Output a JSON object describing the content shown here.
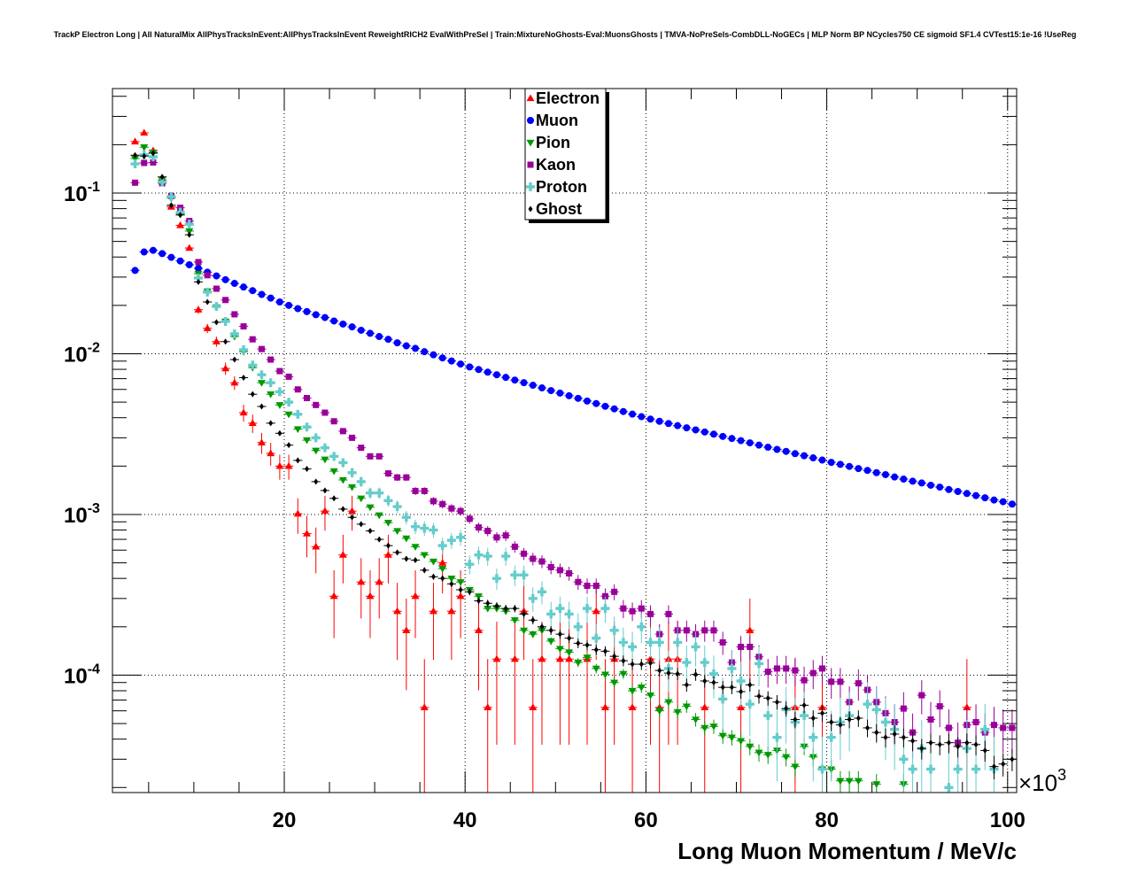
{
  "title": "TrackP Electron Long | All NaturalMix AllPhysTracksInEvent:AllPhysTracksInEvent ReweightRICH2 EvalWithPreSel | Train:MixtureNoGhosts-Eval:MuonsGhosts | TMVA-NoPreSels-CombDLL-NoGECs | MLP Norm BP NCycles750 CE sigmoid SF1.4 CVTest15:1e-16 !UseReg",
  "chart_data": {
    "type": "scatter",
    "title": "TrackP Electron Long | All NaturalMix AllPhysTracksInEvent:AllPhysTracksInEvent ReweightRICH2 EvalWithPreSel | Train:MixtureNoGhosts-Eval:MuonsGhosts | TMVA-NoPreSels-CombDLL-NoGECs | MLP Norm BP NCycles750 CE sigmoid SF1.4 CVTest15:1e-16 !UseReg",
    "xlabel": "Long Muon Momentum / MeV/c",
    "x_multiplier": {
      "base": "×10",
      "exp": "3"
    },
    "ylabel": "",
    "xlim": [
      1,
      101
    ],
    "ylim": [
      1.86e-05,
      0.447
    ],
    "yscale": "log",
    "grid": true,
    "legend_position": "top-center",
    "x_ticks": [
      {
        "value": 20,
        "label": "20"
      },
      {
        "value": 40,
        "label": "40"
      },
      {
        "value": 60,
        "label": "60"
      },
      {
        "value": 80,
        "label": "80"
      },
      {
        "value": 100,
        "label": "100"
      }
    ],
    "y_ticks": [
      {
        "value": 0.1,
        "base": "10",
        "exp": "-1"
      },
      {
        "value": 0.01,
        "base": "10",
        "exp": "-2"
      },
      {
        "value": 0.001,
        "base": "10",
        "exp": "-3"
      },
      {
        "value": 0.0001,
        "base": "10",
        "exp": "-4"
      }
    ],
    "x_start": 3.5,
    "bin_width": 1,
    "series": [
      {
        "name": "Electron",
        "color": "#ff0000",
        "marker": "triangle-up",
        "unit_weight": 6.3e-05,
        "values": [
          0.209,
          0.237,
          0.184,
          0.118,
          0.082,
          0.063,
          0.0455,
          0.0188,
          0.0144,
          0.0119,
          0.0081,
          0.0066,
          0.0043,
          0.0037,
          0.0028,
          0.0024,
          0.002,
          0.002,
          0.00101,
          0.00076,
          0.00063,
          0.00105,
          0.00031,
          0.00056,
          0.00105,
          0.00038,
          0.00031,
          0.00038,
          0.00056,
          0.00025,
          0.00019,
          0.00031,
          6.3e-05,
          0.00025,
          0.0005,
          0.00025,
          0.00031,
          null,
          0.00019,
          6.3e-05,
          0.000126,
          null,
          0.000126,
          0.00025,
          6.3e-05,
          0.000126,
          null,
          0.000126,
          0.000126,
          null,
          0.000126,
          0.00025,
          6.3e-05,
          0.000126,
          null,
          6.3e-05,
          null,
          0.000126,
          6.3e-05,
          0.000126,
          0.000126,
          null,
          null,
          6.3e-05,
          null,
          null,
          null,
          6.3e-05,
          0.00019,
          null,
          null,
          null,
          null,
          6.3e-05,
          null,
          null,
          6.3e-05,
          null,
          null,
          null,
          null,
          null,
          null,
          null,
          null,
          null,
          null,
          null,
          null,
          null,
          null,
          null,
          6.3e-05,
          null,
          null,
          null,
          null,
          null
        ]
      },
      {
        "name": "Muon",
        "color": "#0000ff",
        "marker": "circle",
        "unit_weight": 2e-07,
        "values": [
          0.033,
          0.043,
          0.044,
          0.042,
          0.0398,
          0.0378,
          0.0358,
          0.034,
          0.0322,
          0.0305,
          0.0289,
          0.0274,
          0.026,
          0.0247,
          0.0234,
          0.0222,
          0.021,
          0.02,
          0.0191,
          0.0183,
          0.0175,
          0.0168,
          0.016,
          0.0153,
          0.0147,
          0.014,
          0.0134,
          0.0128,
          0.0123,
          0.0117,
          0.0112,
          0.0108,
          0.0103,
          0.00985,
          0.00942,
          0.00902,
          0.00863,
          0.00828,
          0.00798,
          0.00768,
          0.0074,
          0.00713,
          0.00686,
          0.00661,
          0.00637,
          0.00613,
          0.0059,
          0.00569,
          0.00548,
          0.00528,
          0.00508,
          0.0049,
          0.00471,
          0.00454,
          0.00437,
          0.00421,
          0.00406,
          0.00392,
          0.0038,
          0.00368,
          0.00357,
          0.00346,
          0.00336,
          0.00326,
          0.00316,
          0.00306,
          0.00297,
          0.00288,
          0.00279,
          0.0027,
          0.00262,
          0.00254,
          0.00247,
          0.00239,
          0.00232,
          0.00225,
          0.00218,
          0.00211,
          0.00205,
          0.00199,
          0.00193,
          0.00188,
          0.00182,
          0.00177,
          0.00171,
          0.00166,
          0.00161,
          0.00157,
          0.00152,
          0.00148,
          0.00143,
          0.00139,
          0.00135,
          0.00131,
          0.00127,
          0.00123,
          0.0012,
          0.00116
        ]
      },
      {
        "name": "Pion",
        "color": "#009900",
        "marker": "triangle-down",
        "unit_weight": 5e-07,
        "values": [
          0.164,
          0.193,
          0.179,
          0.121,
          0.093,
          0.074,
          0.058,
          0.0315,
          0.0245,
          0.0195,
          0.0159,
          0.0128,
          0.0103,
          0.0082,
          0.0066,
          0.0056,
          0.0048,
          0.0042,
          0.0034,
          0.0029,
          0.0025,
          0.0022,
          0.00186,
          0.00164,
          0.00148,
          0.00126,
          0.00111,
          0.00099,
          0.00089,
          0.00079,
          0.00071,
          0.00063,
          0.00056,
          0.00051,
          0.00046,
          0.0004,
          0.00038,
          0.00034,
          0.00031,
          0.00026,
          0.00026,
          0.00025,
          0.00022,
          0.00019,
          0.00018,
          0.00019,
          0.000163,
          0.000146,
          0.000139,
          0.00012,
          0.000129,
          0.00011,
          0.000101,
          9e-05,
          0.000102,
          8e-05,
          8.4e-05,
          7.5e-05,
          6e-05,
          6.8e-05,
          5.9e-05,
          6.4e-05,
          5.3e-05,
          4.7e-05,
          4.8e-05,
          4.2e-05,
          4.1e-05,
          3.9e-05,
          3.6e-05,
          3.3e-05,
          3.2e-05,
          3.4e-05,
          3.1e-05,
          2.7e-05,
          3.6e-05,
          3.1e-05,
          2.6e-05,
          2.6e-05,
          2.2e-05,
          2.2e-05,
          2.2e-05,
          null,
          2.1e-05,
          null,
          null,
          2.1e-05,
          null,
          null,
          null,
          null,
          null,
          null,
          null,
          null,
          null,
          null,
          null,
          null
        ]
      },
      {
        "name": "Kaon",
        "color": "#990099",
        "marker": "square",
        "unit_weight": 4.3e-06,
        "values": [
          0.116,
          0.154,
          0.155,
          0.115,
          0.096,
          0.081,
          0.067,
          0.0372,
          0.0308,
          0.0254,
          0.0216,
          0.0176,
          0.0148,
          0.0123,
          0.0107,
          0.0092,
          0.0078,
          0.0072,
          0.006,
          0.0053,
          0.0048,
          0.0043,
          0.0038,
          0.0033,
          0.003,
          0.0026,
          0.0023,
          0.0023,
          0.0018,
          0.0017,
          0.0017,
          0.0014,
          0.0014,
          0.00121,
          0.00116,
          0.00109,
          0.00105,
          0.00094,
          0.00083,
          0.00079,
          0.00072,
          0.00074,
          0.00063,
          0.00057,
          0.00053,
          0.00051,
          0.00047,
          0.00045,
          0.00043,
          0.00038,
          0.00036,
          0.00036,
          0.00031,
          0.00033,
          0.00026,
          0.00025,
          0.00026,
          0.00024,
          0.00018,
          0.00024,
          0.00019,
          0.00019,
          0.00018,
          0.00019,
          0.00019,
          0.00016,
          0.00012,
          0.00015,
          0.00015,
          0.00013,
          0.000105,
          0.00011,
          0.00011,
          0.000107,
          9.3e-05,
          0.000103,
          0.00011,
          9.1e-05,
          9.1e-05,
          6.8e-05,
          8.9e-05,
          8.1e-05,
          6.8e-05,
          5.8e-05,
          5.1e-05,
          6.2e-05,
          4.4e-05,
          7.5e-05,
          5.3e-05,
          6.4e-05,
          4.7e-05,
          3.8e-05,
          4.9e-05,
          5.1e-05,
          4.4e-05,
          4.9e-05,
          4.7e-05,
          4.7e-05
        ]
      },
      {
        "name": "Proton",
        "color": "#66cccc",
        "marker": "cross",
        "unit_weight": 9e-06,
        "values": [
          0.152,
          0.173,
          0.168,
          0.117,
          0.095,
          0.076,
          0.064,
          0.0296,
          0.0242,
          0.0197,
          0.0159,
          0.0133,
          0.0106,
          0.0085,
          0.0074,
          0.0066,
          0.0058,
          0.005,
          0.0042,
          0.0035,
          0.003,
          0.0026,
          0.0023,
          0.0021,
          0.00182,
          0.0016,
          0.00136,
          0.00136,
          0.00122,
          0.00112,
          0.00096,
          0.00084,
          0.00082,
          0.0008,
          0.00064,
          0.00069,
          0.00072,
          0.00049,
          0.00056,
          0.00055,
          0.0004,
          0.00055,
          0.00042,
          0.00042,
          0.0003,
          0.00033,
          0.00024,
          0.00026,
          0.00024,
          0.0002,
          0.00026,
          0.00017,
          0.00026,
          0.00019,
          0.00016,
          0.00015,
          0.0002,
          0.00016,
          0.00016,
          0.00011,
          0.00016,
          0.00012,
          0.00015,
          0.00012,
          0.000102,
          7.1e-05,
          0.00011,
          9.2e-05,
          6.6e-05,
          0.000118,
          5.6e-05,
          4.1e-05,
          6.1e-05,
          5.1e-05,
          5.6e-05,
          4.1e-05,
          2.6e-05,
          4.1e-05,
          5.1e-05,
          5.6e-05,
          null,
          6.6e-05,
          6.1e-05,
          5.1e-05,
          4.6e-05,
          3e-05,
          2.6e-05,
          3.5e-05,
          2.6e-05,
          null,
          2e-05,
          2.6e-05,
          3.5e-05,
          2.6e-05,
          4.6e-05,
          2.6e-05,
          null,
          null
        ]
      },
      {
        "name": "Ghost",
        "color": "#000000",
        "marker": "diamond",
        "unit_weight": 7.5e-07,
        "values": [
          0.172,
          0.17,
          0.177,
          0.126,
          0.084,
          0.073,
          0.055,
          0.028,
          0.021,
          0.0157,
          0.0119,
          0.0092,
          0.0071,
          0.0056,
          0.0047,
          0.0037,
          0.0032,
          0.0027,
          0.00217,
          0.00192,
          0.0016,
          0.00141,
          0.00126,
          0.00108,
          0.00096,
          0.00087,
          0.00079,
          0.0007,
          0.00064,
          0.00058,
          0.00053,
          0.00052,
          0.00045,
          0.00041,
          0.0004,
          0.00037,
          0.00034,
          0.00033,
          0.00029,
          0.00028,
          0.00027,
          0.00026,
          0.00026,
          0.00024,
          0.00022,
          0.0002,
          0.00019,
          0.00018,
          0.00017,
          0.000158,
          0.000154,
          0.000144,
          0.000141,
          0.000131,
          0.000123,
          0.000117,
          0.000117,
          0.000119,
          0.000107,
          0.000103,
          0.000102,
          8.7e-05,
          0.000101,
          9.2e-05,
          9e-05,
          8.4e-05,
          8.4e-05,
          7.9e-05,
          8.7e-05,
          7.4e-05,
          7.2e-05,
          6.8e-05,
          6.2e-05,
          5.3e-05,
          6.5e-05,
          5.4e-05,
          5.8e-05,
          5.1e-05,
          4.9e-05,
          5.3e-05,
          5.4e-05,
          4.7e-05,
          4.4e-05,
          4.1e-05,
          4.3e-05,
          4.1e-05,
          3.9e-05,
          3.5e-05,
          3.8e-05,
          3.7e-05,
          3.8e-05,
          3.6e-05,
          3.8e-05,
          3.7e-05,
          3.4e-05,
          2.7e-05,
          2.8e-05,
          3e-05
        ]
      }
    ]
  }
}
